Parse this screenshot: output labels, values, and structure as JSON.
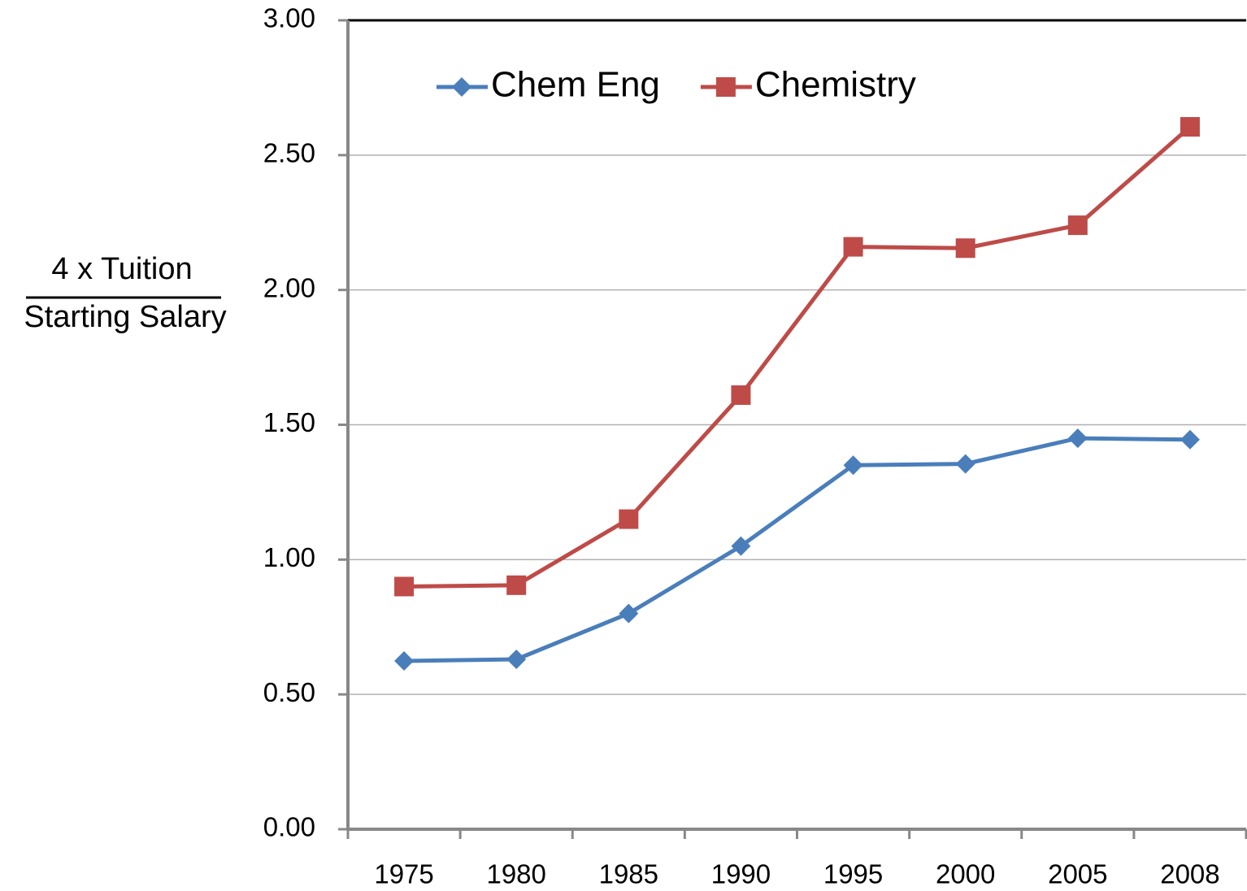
{
  "chart_data": {
    "type": "line",
    "ylabel": [
      "4 x Tuition",
      "Starting Salary"
    ],
    "categories": [
      "1975",
      "1980",
      "1985",
      "1990",
      "1995",
      "2000",
      "2005",
      "2008"
    ],
    "series": [
      {
        "name": "Chem Eng",
        "color": "#4a7ebb",
        "marker": "diamond",
        "values": [
          0.624,
          0.63,
          0.8,
          1.05,
          1.35,
          1.355,
          1.45,
          1.445
        ]
      },
      {
        "name": "Chemistry",
        "color": "#be4b48",
        "marker": "square",
        "values": [
          0.9,
          0.905,
          1.15,
          1.61,
          2.16,
          2.155,
          2.24,
          2.605
        ]
      }
    ],
    "ylim": [
      0,
      3
    ],
    "yticks": [
      {
        "value": 0,
        "label": "0.00"
      },
      {
        "value": 0.5,
        "label": "0.50"
      },
      {
        "value": 1,
        "label": "1.00"
      },
      {
        "value": 1.5,
        "label": "1.50"
      },
      {
        "value": 2,
        "label": "2.00"
      },
      {
        "value": 2.5,
        "label": "2.50"
      },
      {
        "value": 3,
        "label": "3.00"
      }
    ],
    "grid": true,
    "legend": "top-left"
  }
}
